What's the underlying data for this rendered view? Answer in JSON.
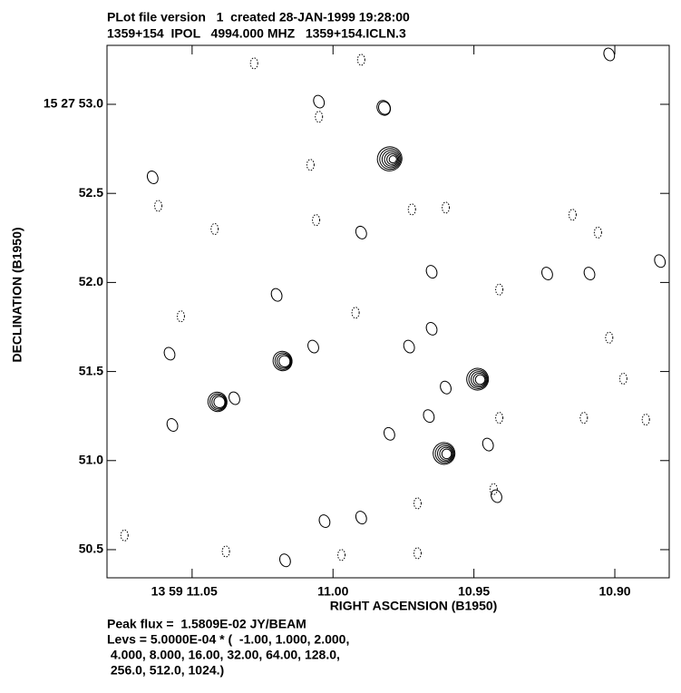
{
  "chart_data": {
    "type": "contour",
    "title": "PLot file version   1  created 28-JAN-1999 19:28:00",
    "subtitle": "1359+154  IPOL   4994.000 MHZ   1359+154.ICLN.3",
    "xlabel": "RIGHT ASCENSION (B1950)",
    "ylabel": "DECLINATION (B1950)",
    "notes": [
      "Peak flux =  1.5809E-02 JY/BEAM",
      "Levs = 5.0000E-04 * (  -1.00, 1.000, 2.000,",
      " 4.000, 8.000, 16.00, 32.00, 64.00, 128.0,",
      " 256.0, 512.0, 1024.)"
    ],
    "xlim": [
      11.0802,
      10.8807
    ],
    "ylim": [
      50.342,
      53.331
    ],
    "xticks": [
      {
        "value": 11.05,
        "label": "13 59 11.05"
      },
      {
        "value": 11.0,
        "label": "11.00"
      },
      10.95,
      {
        "value": 10.9,
        "label": "10.90"
      }
    ],
    "yticks": [
      {
        "value": 53.0,
        "label": "15 27 53.0"
      },
      52.5,
      {
        "value": 52.0,
        "label": "52.0"
      },
      51.5,
      {
        "value": 51.0,
        "label": "51.0"
      },
      50.5
    ],
    "contours": {
      "x": [
        10.9799,
        10.9487,
        10.9606,
        11.0179,
        11.041,
        11.005,
        11.064,
        10.99,
        10.965,
        11.02,
        11.007,
        11.058,
        10.973,
        10.965,
        10.96,
        10.966,
        10.98,
        10.945,
        10.924,
        10.884,
        10.902,
        11.003,
        10.942,
        10.99,
        11.057,
        10.909,
        11.035,
        11.017,
        10.982
      ],
      "y": [
        52.694,
        51.457,
        51.04,
        51.559,
        51.33,
        53.015,
        52.59,
        52.28,
        52.06,
        51.93,
        51.64,
        51.6,
        51.64,
        51.74,
        51.41,
        51.25,
        51.15,
        51.09,
        52.05,
        52.12,
        53.28,
        50.66,
        50.8,
        50.68,
        51.2,
        52.05,
        51.35,
        50.44,
        52.98
      ],
      "levels": [
        6,
        5,
        5,
        4,
        4,
        1,
        1,
        1,
        1,
        1,
        1,
        1,
        1,
        1,
        1,
        1,
        1,
        1,
        1,
        1,
        1,
        1,
        1,
        1,
        1,
        1,
        1,
        1,
        2
      ]
    },
    "negative_contours": {
      "x": [
        10.99,
        11.028,
        11.005,
        11.008,
        11.062,
        11.042,
        11.006,
        10.972,
        10.96,
        10.915,
        10.906,
        10.941,
        11.054,
        10.992,
        10.902,
        10.897,
        10.889,
        10.941,
        10.943,
        10.97,
        11.038,
        10.997,
        10.97,
        11.074,
        10.911
      ],
      "y": [
        53.25,
        53.23,
        52.93,
        52.66,
        52.43,
        52.3,
        52.35,
        52.41,
        52.42,
        52.38,
        52.28,
        51.96,
        51.81,
        51.83,
        51.69,
        51.46,
        51.23,
        51.24,
        50.84,
        50.76,
        50.49,
        50.47,
        50.48,
        50.58,
        51.24
      ]
    }
  }
}
